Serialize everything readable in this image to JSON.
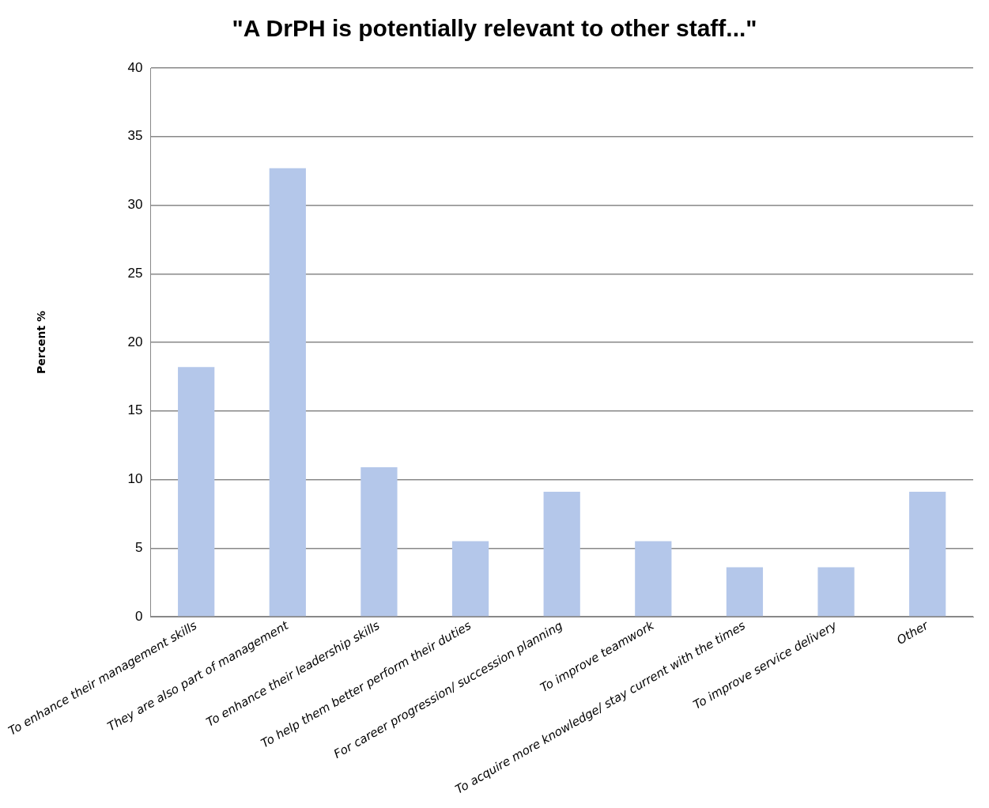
{
  "chart_data": {
    "type": "bar",
    "title": "\"A DrPH is potentially relevant to other staff...\"",
    "ylabel": "Percent %",
    "categories": [
      "To enhance their management skills",
      "They are also part of management",
      "To enhance their leadership skills",
      "To help them better perform their duties",
      "For career progression/ succession planning",
      "To improve teamwork",
      "To acquire more knowledge/ stay current with the times",
      "To improve service delivery",
      "Other"
    ],
    "values": [
      18.2,
      32.7,
      10.9,
      5.5,
      9.1,
      5.5,
      3.6,
      3.6,
      9.1
    ],
    "color": "#b4c7ea",
    "ylim": [
      0,
      40
    ],
    "yticks": [
      0,
      5,
      10,
      15,
      20,
      25,
      30,
      35,
      40
    ],
    "grid": "y",
    "legend": false
  }
}
